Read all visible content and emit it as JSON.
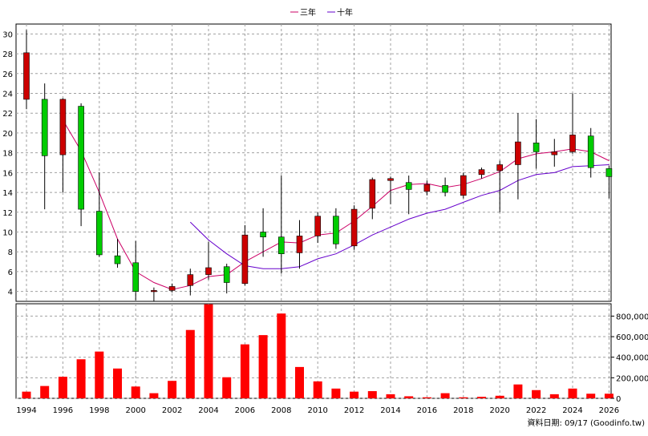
{
  "legend": {
    "ma3_label": "三年",
    "ma10_label": "十年"
  },
  "footer": "資料日期: 09/17  (Goodinfo.tw)",
  "colors": {
    "up": "#cc0000",
    "down": "#00cc00",
    "candle_outline": "#000000",
    "ma3": "#cc0066",
    "ma10": "#6600cc",
    "volume": "#ff0000",
    "grid": "#a0a0a0"
  },
  "chart_data": [
    {
      "type": "candlestick",
      "grid": true,
      "legend_position": "top-center",
      "xlim": [
        1994,
        2026
      ],
      "ylim": [
        3,
        31
      ],
      "y_ticks": [
        "4",
        "6",
        "8",
        "10",
        "12",
        "14",
        "16",
        "18",
        "20",
        "22",
        "24",
        "26",
        "28",
        "30"
      ],
      "x_ticks": [
        "1994",
        "1996",
        "1998",
        "2000",
        "2002",
        "2004",
        "2006",
        "2008",
        "2010",
        "2012",
        "2014",
        "2016",
        "2018",
        "2020",
        "2022",
        "2024",
        "2026"
      ],
      "candles": [
        {
          "year": 1994,
          "open": 23.4,
          "high": 30.4,
          "low": 22.4,
          "close": 28.1
        },
        {
          "year": 1995,
          "open": 23.4,
          "high": 25.0,
          "low": 12.3,
          "close": 17.7
        },
        {
          "year": 1996,
          "open": 17.8,
          "high": 23.5,
          "low": 14.0,
          "close": 23.4
        },
        {
          "year": 1997,
          "open": 22.7,
          "high": 23.0,
          "low": 10.6,
          "close": 12.3
        },
        {
          "year": 1998,
          "open": 12.1,
          "high": 16.0,
          "low": 7.5,
          "close": 7.7
        },
        {
          "year": 1999,
          "open": 7.6,
          "high": 9.3,
          "low": 6.4,
          "close": 6.8
        },
        {
          "year": 2000,
          "open": 6.9,
          "high": 9.1,
          "low": 3.1,
          "close": 4.0
        },
        {
          "year": 2001,
          "open": 4.1,
          "high": 4.4,
          "low": 3.0,
          "close": 4.1
        },
        {
          "year": 2002,
          "open": 4.1,
          "high": 4.8,
          "low": 3.9,
          "close": 4.5
        },
        {
          "year": 2003,
          "open": 4.6,
          "high": 6.3,
          "low": 3.6,
          "close": 5.7
        },
        {
          "year": 2004,
          "open": 5.7,
          "high": 9.0,
          "low": 5.2,
          "close": 6.4
        },
        {
          "year": 2005,
          "open": 6.5,
          "high": 6.8,
          "low": 3.8,
          "close": 4.9
        },
        {
          "year": 2006,
          "open": 4.8,
          "high": 10.7,
          "low": 4.6,
          "close": 9.7
        },
        {
          "year": 2007,
          "open": 10.0,
          "high": 12.4,
          "low": 7.5,
          "close": 9.5
        },
        {
          "year": 2008,
          "open": 9.5,
          "high": 15.7,
          "low": 5.8,
          "close": 7.8
        },
        {
          "year": 2009,
          "open": 7.9,
          "high": 11.2,
          "low": 6.3,
          "close": 9.6
        },
        {
          "year": 2010,
          "open": 9.6,
          "high": 12.0,
          "low": 8.9,
          "close": 11.6
        },
        {
          "year": 2011,
          "open": 11.6,
          "high": 12.4,
          "low": 8.3,
          "close": 8.8
        },
        {
          "year": 2012,
          "open": 8.6,
          "high": 12.7,
          "low": 8.2,
          "close": 12.3
        },
        {
          "year": 2013,
          "open": 12.4,
          "high": 15.5,
          "low": 11.3,
          "close": 15.3
        },
        {
          "year": 2014,
          "open": 15.2,
          "high": 15.6,
          "low": 12.8,
          "close": 15.4
        },
        {
          "year": 2015,
          "open": 15.0,
          "high": 15.7,
          "low": 11.8,
          "close": 14.3
        },
        {
          "year": 2016,
          "open": 14.1,
          "high": 15.2,
          "low": 13.7,
          "close": 14.8
        },
        {
          "year": 2017,
          "open": 14.7,
          "high": 15.5,
          "low": 13.6,
          "close": 14.0
        },
        {
          "year": 2018,
          "open": 13.7,
          "high": 16.0,
          "low": 13.4,
          "close": 15.7
        },
        {
          "year": 2019,
          "open": 15.8,
          "high": 16.5,
          "low": 15.4,
          "close": 16.3
        },
        {
          "year": 2020,
          "open": 16.2,
          "high": 17.2,
          "low": 12.0,
          "close": 16.8
        },
        {
          "year": 2021,
          "open": 16.8,
          "high": 22.0,
          "low": 13.3,
          "close": 19.1
        },
        {
          "year": 2022,
          "open": 19.0,
          "high": 21.4,
          "low": 16.4,
          "close": 18.1
        },
        {
          "year": 2023,
          "open": 17.8,
          "high": 19.4,
          "low": 16.6,
          "close": 18.1
        },
        {
          "year": 2024,
          "open": 18.1,
          "high": 24.0,
          "low": 17.9,
          "close": 19.8
        },
        {
          "year": 2025,
          "open": 19.7,
          "high": 20.5,
          "low": 15.5,
          "close": 16.5
        },
        {
          "year": 2026,
          "open": 16.4,
          "high": 16.7,
          "low": 13.4,
          "close": 15.6
        }
      ],
      "series": [
        {
          "name": "三年",
          "x": [
            1996,
            1997,
            1998,
            1999,
            2000,
            2001,
            2002,
            2003,
            2004,
            2005,
            2006,
            2007,
            2008,
            2009,
            2010,
            2011,
            2012,
            2013,
            2014,
            2015,
            2016,
            2017,
            2018,
            2019,
            2020,
            2021,
            2022,
            2023,
            2024,
            2025,
            2026
          ],
          "y": [
            21.3,
            18.2,
            14.0,
            9.3,
            6.0,
            4.9,
            4.2,
            4.6,
            5.5,
            5.7,
            7.0,
            8.0,
            9.0,
            8.9,
            9.7,
            9.9,
            11.1,
            12.6,
            14.2,
            14.8,
            14.9,
            14.5,
            14.8,
            15.4,
            16.1,
            17.4,
            17.9,
            18.1,
            18.4,
            18.1,
            17.2
          ]
        },
        {
          "name": "十年",
          "x": [
            2003,
            2004,
            2005,
            2006,
            2007,
            2008,
            2009,
            2010,
            2011,
            2012,
            2013,
            2014,
            2015,
            2016,
            2017,
            2018,
            2019,
            2020,
            2021,
            2022,
            2023,
            2024,
            2025,
            2026
          ],
          "y": [
            11.0,
            9.2,
            7.8,
            6.6,
            6.3,
            6.3,
            6.5,
            7.3,
            7.8,
            8.7,
            9.7,
            10.5,
            11.3,
            11.9,
            12.3,
            13.0,
            13.7,
            14.2,
            15.2,
            15.8,
            16.0,
            16.6,
            16.7,
            16.8
          ]
        }
      ]
    },
    {
      "type": "bar",
      "grid": true,
      "xlim": [
        1994,
        2026
      ],
      "ylim": [
        0,
        920000
      ],
      "y_ticks": [
        "0",
        "200,000",
        "400,000",
        "600,000",
        "800,000"
      ],
      "categories": [
        1994,
        1995,
        1996,
        1997,
        1998,
        1999,
        2000,
        2001,
        2002,
        2003,
        2004,
        2005,
        2006,
        2007,
        2008,
        2009,
        2010,
        2011,
        2012,
        2013,
        2014,
        2015,
        2016,
        2017,
        2018,
        2019,
        2020,
        2021,
        2022,
        2023,
        2024,
        2025,
        2026
      ],
      "values": [
        65000,
        120000,
        210000,
        380000,
        455000,
        290000,
        115000,
        50000,
        170000,
        665000,
        915000,
        205000,
        525000,
        615000,
        825000,
        305000,
        165000,
        95000,
        65000,
        70000,
        40000,
        20000,
        10000,
        50000,
        10000,
        15000,
        25000,
        135000,
        80000,
        40000,
        95000,
        45000,
        45000
      ]
    }
  ]
}
